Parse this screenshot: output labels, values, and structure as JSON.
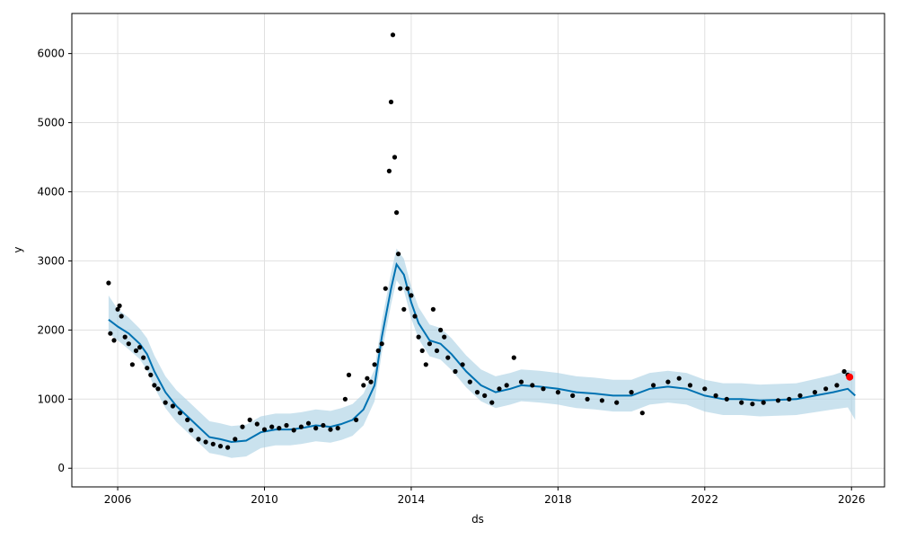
{
  "chart_data": {
    "type": "scatter",
    "title": "",
    "xlabel": "ds",
    "ylabel": "y",
    "x_ticks": [
      "2006",
      "2010",
      "2014",
      "2018",
      "2022",
      "2026"
    ],
    "x_tick_values": [
      2006,
      2010,
      2014,
      2018,
      2022,
      2026
    ],
    "y_ticks": [
      "0",
      "1000",
      "2000",
      "3000",
      "4000",
      "5000",
      "6000"
    ],
    "y_tick_values": [
      0,
      1000,
      2000,
      3000,
      4000,
      5000,
      6000
    ],
    "xlim": [
      2004.75,
      2026.9
    ],
    "ylim": [
      -270,
      6580
    ],
    "grid": true,
    "colors": {
      "observed": "#000000",
      "forecast_line": "#0072B2",
      "uncertainty_band": "#a6cee3",
      "highlight": "#ff0000"
    },
    "series": [
      {
        "kind": "forecast",
        "x": [
          2005.75,
          2006.0,
          2006.3,
          2006.6,
          2006.8,
          2007.0,
          2007.3,
          2007.6,
          2007.9,
          2008.2,
          2008.5,
          2008.8,
          2009.1,
          2009.5,
          2009.9,
          2010.3,
          2010.7,
          2011.0,
          2011.4,
          2011.8,
          2012.1,
          2012.4,
          2012.7,
          2013.0,
          2013.2,
          2013.45,
          2013.6,
          2013.8,
          2014.0,
          2014.2,
          2014.5,
          2014.8,
          2015.1,
          2015.5,
          2015.9,
          2016.3,
          2016.7,
          2017.0,
          2017.5,
          2018.0,
          2018.5,
          2019.0,
          2019.5,
          2020.0,
          2020.5,
          2021.0,
          2021.5,
          2022.0,
          2022.5,
          2023.0,
          2023.5,
          2024.0,
          2024.5,
          2025.0,
          2025.5,
          2025.9,
          2026.1
        ],
        "y": [
          2150,
          2050,
          1950,
          1800,
          1650,
          1400,
          1100,
          900,
          750,
          600,
          450,
          420,
          380,
          400,
          520,
          560,
          560,
          580,
          620,
          600,
          640,
          700,
          850,
          1200,
          1900,
          2600,
          2950,
          2800,
          2400,
          2100,
          1850,
          1800,
          1650,
          1400,
          1200,
          1100,
          1150,
          1200,
          1180,
          1150,
          1100,
          1080,
          1050,
          1050,
          1150,
          1180,
          1150,
          1050,
          1000,
          1000,
          980,
          990,
          1000,
          1050,
          1100,
          1150,
          1050
        ],
        "lower": [
          1950,
          1850,
          1720,
          1580,
          1420,
          1170,
          870,
          670,
          520,
          370,
          220,
          190,
          150,
          170,
          290,
          330,
          330,
          350,
          390,
          370,
          410,
          470,
          620,
          970,
          1670,
          2370,
          2720,
          2570,
          2170,
          1870,
          1620,
          1570,
          1420,
          1170,
          970,
          870,
          920,
          970,
          950,
          920,
          870,
          850,
          820,
          820,
          920,
          950,
          920,
          820,
          770,
          770,
          750,
          760,
          770,
          810,
          850,
          880,
          700
        ],
        "upper": [
          2500,
          2300,
          2180,
          2020,
          1880,
          1630,
          1330,
          1130,
          980,
          830,
          680,
          650,
          610,
          630,
          750,
          790,
          790,
          810,
          850,
          830,
          870,
          930,
          1080,
          1430,
          2130,
          2830,
          3180,
          3030,
          2630,
          2330,
          2080,
          2030,
          1880,
          1630,
          1430,
          1330,
          1380,
          1430,
          1410,
          1380,
          1330,
          1310,
          1280,
          1280,
          1380,
          1410,
          1380,
          1280,
          1230,
          1230,
          1210,
          1220,
          1230,
          1290,
          1350,
          1420,
          1400
        ]
      },
      {
        "kind": "observed",
        "x": [
          2005.75,
          2005.8,
          2005.9,
          2006.0,
          2006.05,
          2006.1,
          2006.2,
          2006.3,
          2006.4,
          2006.5,
          2006.6,
          2006.7,
          2006.8,
          2006.9,
          2007.0,
          2007.1,
          2007.3,
          2007.5,
          2007.7,
          2007.9,
          2008.0,
          2008.2,
          2008.4,
          2008.6,
          2008.8,
          2009.0,
          2009.2,
          2009.4,
          2009.6,
          2009.8,
          2010.0,
          2010.2,
          2010.4,
          2010.6,
          2010.8,
          2011.0,
          2011.2,
          2011.4,
          2011.6,
          2011.8,
          2012.0,
          2012.2,
          2012.3,
          2012.5,
          2012.7,
          2012.8,
          2012.9,
          2013.0,
          2013.1,
          2013.2,
          2013.3,
          2013.4,
          2013.45,
          2013.5,
          2013.55,
          2013.6,
          2013.65,
          2013.7,
          2013.8,
          2013.9,
          2014.0,
          2014.1,
          2014.2,
          2014.3,
          2014.4,
          2014.5,
          2014.6,
          2014.7,
          2014.8,
          2014.9,
          2015.0,
          2015.2,
          2015.4,
          2015.6,
          2015.8,
          2016.0,
          2016.2,
          2016.4,
          2016.6,
          2016.8,
          2017.0,
          2017.3,
          2017.6,
          2018.0,
          2018.4,
          2018.8,
          2019.2,
          2019.6,
          2020.0,
          2020.3,
          2020.6,
          2021.0,
          2021.3,
          2021.6,
          2022.0,
          2022.3,
          2022.6,
          2023.0,
          2023.3,
          2023.6,
          2024.0,
          2024.3,
          2024.6,
          2025.0,
          2025.3,
          2025.6,
          2025.8,
          2025.9
        ],
        "y": [
          2680,
          1950,
          1850,
          2300,
          2350,
          2200,
          1900,
          1800,
          1500,
          1700,
          1750,
          1600,
          1450,
          1350,
          1200,
          1150,
          950,
          900,
          800,
          700,
          550,
          420,
          380,
          350,
          320,
          300,
          420,
          600,
          700,
          640,
          560,
          600,
          580,
          620,
          550,
          600,
          650,
          580,
          620,
          560,
          580,
          1000,
          1350,
          700,
          1200,
          1300,
          1250,
          1500,
          1700,
          1800,
          2600,
          4300,
          5300,
          6270,
          4500,
          3700,
          3100,
          2600,
          2300,
          2600,
          2500,
          2200,
          1900,
          1700,
          1500,
          1800,
          2300,
          1700,
          2000,
          1900,
          1600,
          1400,
          1500,
          1250,
          1100,
          1050,
          950,
          1150,
          1200,
          1600,
          1250,
          1200,
          1150,
          1100,
          1050,
          1000,
          980,
          950,
          1100,
          800,
          1200,
          1250,
          1300,
          1200,
          1150,
          1050,
          1000,
          950,
          930,
          950,
          980,
          1000,
          1050,
          1100,
          1150,
          1200,
          1400,
          1350
        ]
      },
      {
        "kind": "highlight",
        "x": [
          2025.95
        ],
        "y": [
          1320
        ]
      }
    ]
  }
}
